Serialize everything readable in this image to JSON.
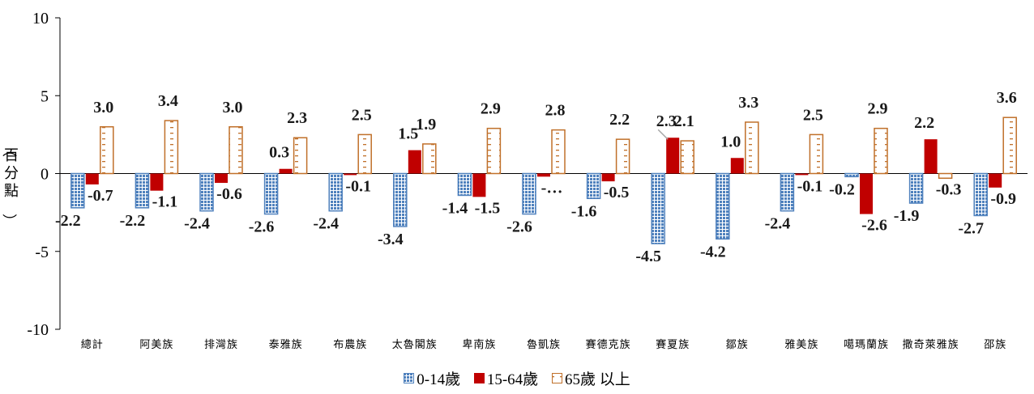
{
  "chart_data": {
    "type": "bar",
    "ylabel": "（百分點）",
    "ylim": [
      -10,
      10
    ],
    "yticks": [
      10,
      5,
      0,
      -5,
      -10
    ],
    "categories": [
      "總計",
      "阿美族",
      "排灣族",
      "泰雅族",
      "布農族",
      "太魯閣族",
      "卑南族",
      "魯凱族",
      "賽德克族",
      "賽夏族",
      "鄒族",
      "雅美族",
      "噶瑪蘭族",
      "撒奇萊雅族",
      "邵族"
    ],
    "series": [
      {
        "name": "0-14歲",
        "color": "#4F81BD",
        "pattern": "dotted",
        "values": [
          -2.2,
          -2.2,
          -2.4,
          -2.6,
          -2.4,
          -3.4,
          -1.4,
          -2.6,
          -1.6,
          -4.5,
          -4.2,
          -2.4,
          -0.2,
          -1.9,
          -2.7
        ],
        "labels": [
          "-2.2",
          "-2.2",
          "-2.4",
          "-2.6",
          "-2.4",
          "-3.4",
          "-1.4",
          "-2.6",
          "-1.6",
          "-4.5",
          "-4.2",
          "-2.4",
          "-0.2",
          "-1.9",
          "-2.7"
        ]
      },
      {
        "name": "15-64歲",
        "color": "#C00000",
        "pattern": "solid",
        "values": [
          -0.7,
          -1.1,
          -0.6,
          0.3,
          -0.1,
          1.5,
          -1.5,
          -0.2,
          -0.5,
          2.3,
          1.0,
          -0.1,
          -2.6,
          2.2,
          -0.9
        ],
        "labels": [
          "-0.7",
          "-1.1",
          "-0.6",
          "0.3",
          "-0.1",
          "1.5",
          "-1.5",
          "-…",
          "-0.5",
          "2.3",
          "1.0",
          "-0.1",
          "-2.6",
          "2.2",
          "-0.9"
        ]
      },
      {
        "name": "65歲 以上",
        "color": "#C0702A",
        "pattern": "dashes",
        "values": [
          3.0,
          3.4,
          3.0,
          2.3,
          2.5,
          1.9,
          2.9,
          2.8,
          2.2,
          2.1,
          3.3,
          2.5,
          2.9,
          -0.3,
          3.6
        ],
        "labels": [
          "3.0",
          "3.4",
          "3.0",
          "2.3",
          "2.5",
          "1.9",
          "2.9",
          "2.8",
          "2.2",
          "2.1",
          "3.3",
          "2.5",
          "2.9",
          "-0.3",
          "3.6"
        ]
      }
    ],
    "legend_position": "bottom",
    "grid": false
  }
}
